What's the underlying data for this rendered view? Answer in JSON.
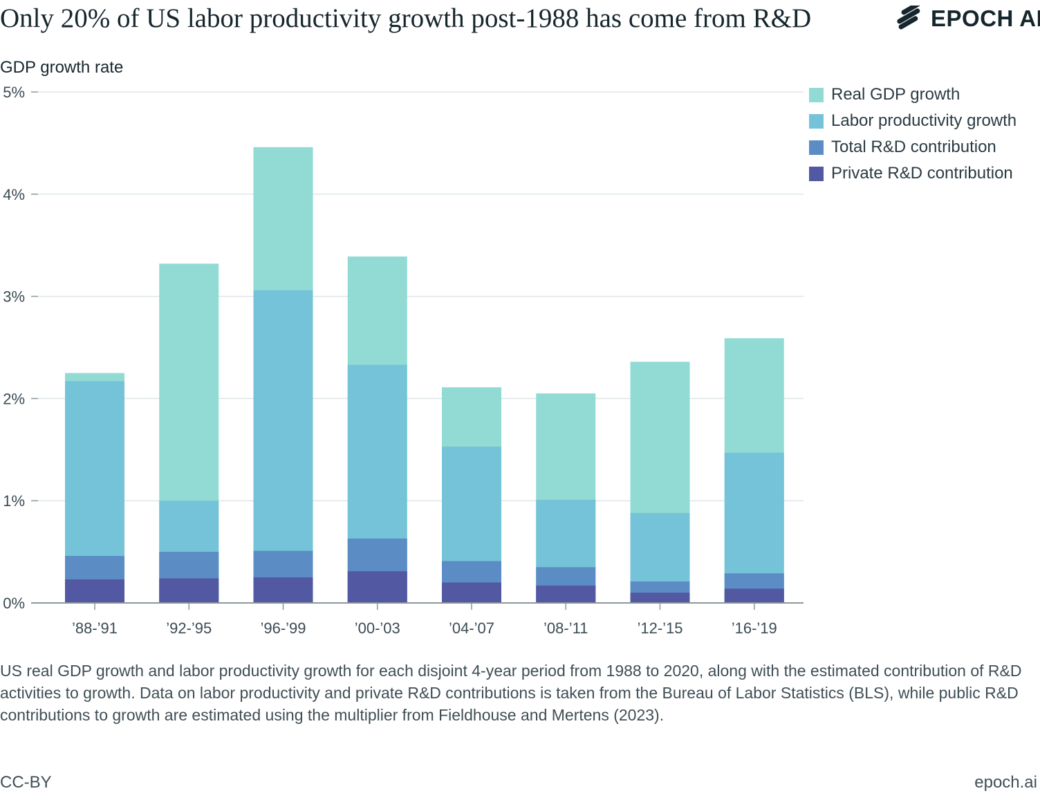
{
  "title": "Only 20% of US labor productivity growth post-1988 has come from R&D",
  "brand": {
    "name": "EPOCH AI",
    "icon": "epoch-stripes-icon"
  },
  "caption": "US real GDP growth and labor productivity growth for each disjoint 4-year period from 1988 to 2020, along with the estimated contribution of R&D activities to growth. Data on labor productivity and private R&D contributions is taken from the Bureau of Labor Statistics (BLS), while public R&D contributions to growth are estimated using the multiplier from Fieldhouse and Mertens (2023).",
  "license": "CC-BY",
  "site": "epoch.ai",
  "chart_data": {
    "type": "bar",
    "layout": "overlapping",
    "ylabel": "GDP growth rate",
    "xlabel": "",
    "ylim": [
      0,
      5
    ],
    "yticks": [
      0,
      1,
      2,
      3,
      4,
      5
    ],
    "ytick_labels": [
      "0%",
      "1%",
      "2%",
      "3%",
      "4%",
      "5%"
    ],
    "grid": true,
    "legend_position": "right",
    "categories": [
      "’88-’91",
      "’92-’95",
      "’96-’99",
      "’00-’03",
      "’04-’07",
      "’08-’11",
      "’12-’15",
      "’16-’19"
    ],
    "series": [
      {
        "name": "Real GDP growth",
        "color": "#91dbd4",
        "values": [
          2.25,
          3.32,
          4.46,
          3.39,
          2.11,
          2.05,
          2.36,
          2.59
        ]
      },
      {
        "name": "Labor productivity growth",
        "color": "#75c3d8",
        "values": [
          2.17,
          1.0,
          3.06,
          2.33,
          1.53,
          1.01,
          0.88,
          1.47
        ]
      },
      {
        "name": "Total R&D contribution",
        "color": "#5b8cc4",
        "values": [
          0.46,
          0.5,
          0.51,
          0.63,
          0.41,
          0.35,
          0.21,
          0.29
        ]
      },
      {
        "name": "Private R&D contribution",
        "color": "#5258a1",
        "values": [
          0.23,
          0.24,
          0.25,
          0.31,
          0.2,
          0.17,
          0.1,
          0.14
        ]
      }
    ]
  }
}
